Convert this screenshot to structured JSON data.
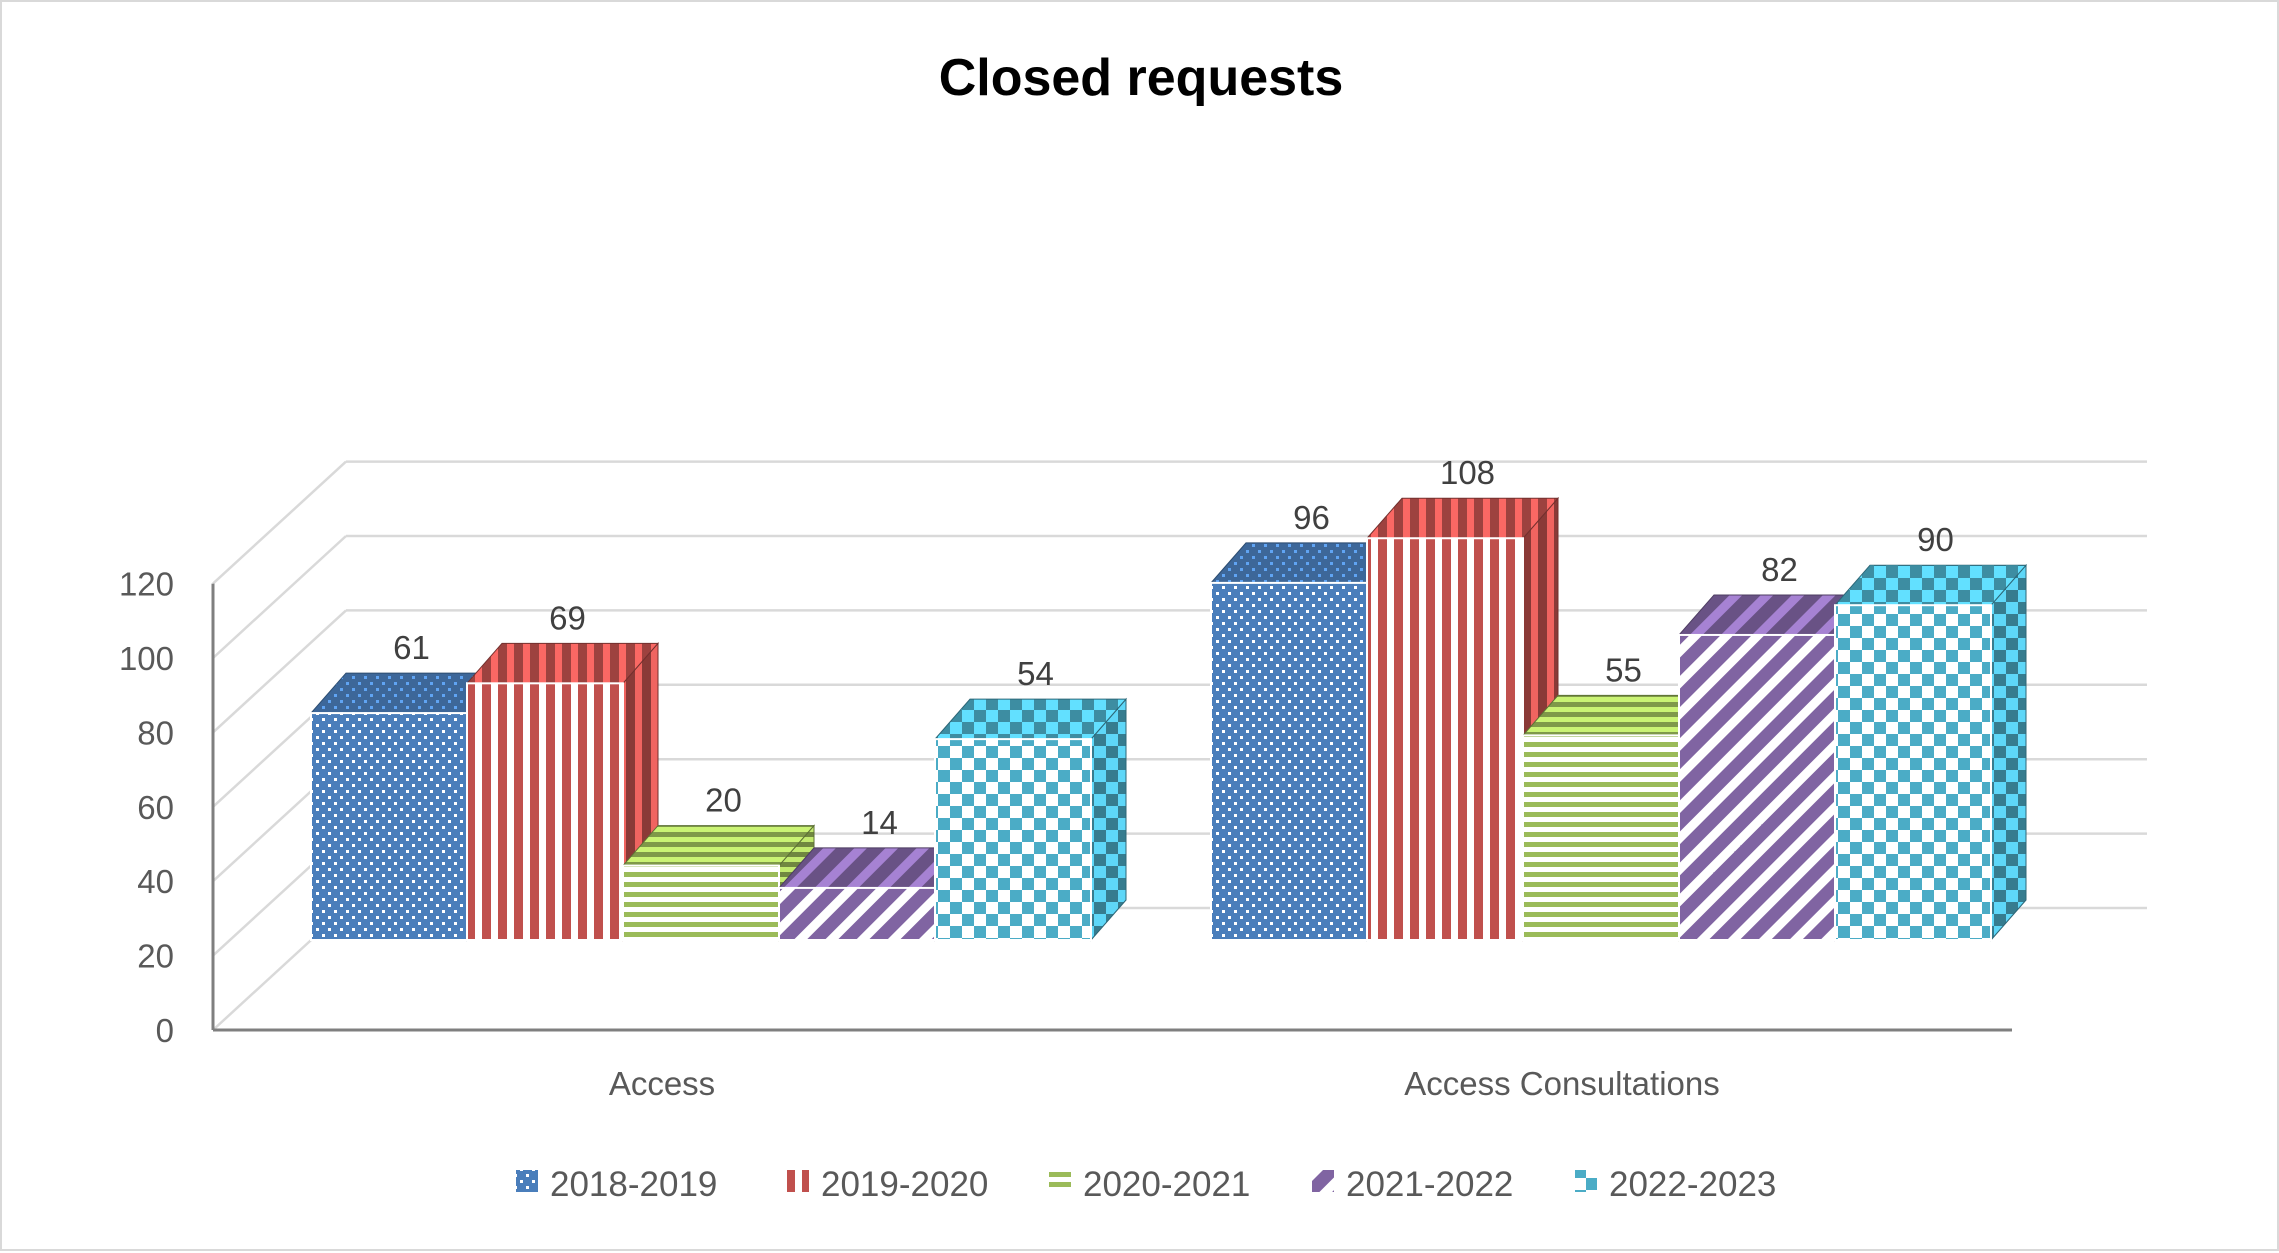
{
  "chart_data": {
    "type": "bar",
    "title": "Closed requests",
    "categories": [
      "Access",
      "Access Consultations"
    ],
    "series": [
      {
        "name": "2018-2019",
        "values": [
          61,
          96
        ],
        "color": "#4a7ebb",
        "pattern": "dots"
      },
      {
        "name": "2019-2020",
        "values": [
          69,
          108
        ],
        "color": "#c0504d",
        "pattern": "vertical-stripes"
      },
      {
        "name": "2020-2021",
        "values": [
          20,
          55
        ],
        "color": "#9bbb59",
        "pattern": "horizontal-stripes"
      },
      {
        "name": "2021-2022",
        "values": [
          14,
          82
        ],
        "color": "#8064a2",
        "pattern": "diagonal-stripes"
      },
      {
        "name": "2022-2023",
        "values": [
          54,
          90
        ],
        "color": "#4bacc6",
        "pattern": "checkerboard"
      }
    ],
    "ylim": [
      0,
      120
    ],
    "yticks": [
      0,
      20,
      40,
      60,
      80,
      100,
      120
    ],
    "style_3d": true,
    "grid": true,
    "legend_position": "bottom"
  }
}
